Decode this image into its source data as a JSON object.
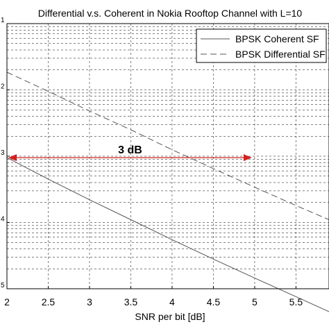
{
  "chart_data": {
    "type": "line",
    "title": "Differential v.s. Coherent in Nokia Rooftop Channel with L=10",
    "xlabel": "SNR per bit [dB]",
    "ylabel": "",
    "xlim": [
      2,
      5.9
    ],
    "ylim_log10": [
      -5,
      -1
    ],
    "yscale": "log",
    "grid": true,
    "legend_position": "top-right",
    "xticks": [
      2,
      2.5,
      3,
      3.5,
      4,
      4.5,
      5,
      5.5
    ],
    "xtick_labels": [
      "2",
      "2.5",
      "3",
      "3.5",
      "4",
      "4.5",
      "5",
      "5.5"
    ],
    "yticks_log10": [
      -5,
      -4,
      -3,
      -2,
      -1
    ],
    "ytick_labels": [
      "5",
      "4",
      "3",
      "2",
      "1"
    ],
    "series": [
      {
        "name": "BPSK Coherent SF",
        "style": "solid",
        "color": "#555555",
        "x": [
          2,
          2.5,
          3,
          3.5,
          4,
          4.5,
          5,
          5.5,
          5.9
        ],
        "y": [
          0.00095,
          0.00045,
          0.00022,
          0.00011,
          5.5e-05,
          2.8e-05,
          1.45e-05,
          7.6e-06,
          4.5e-06
        ]
      },
      {
        "name": "BPSK Differential SF",
        "style": "dashed",
        "color": "#555555",
        "x": [
          2,
          2.5,
          3,
          3.5,
          4,
          4.5,
          5,
          5.5,
          5.9
        ],
        "y": [
          0.0185,
          0.0095,
          0.0048,
          0.0025,
          0.00125,
          0.00065,
          0.00034,
          0.00018,
          0.00011
        ]
      }
    ],
    "annotation": {
      "text": "3 dB",
      "color": "#d42020",
      "from": [
        2,
        0.00095
      ],
      "to": [
        5,
        0.00095
      ]
    }
  }
}
